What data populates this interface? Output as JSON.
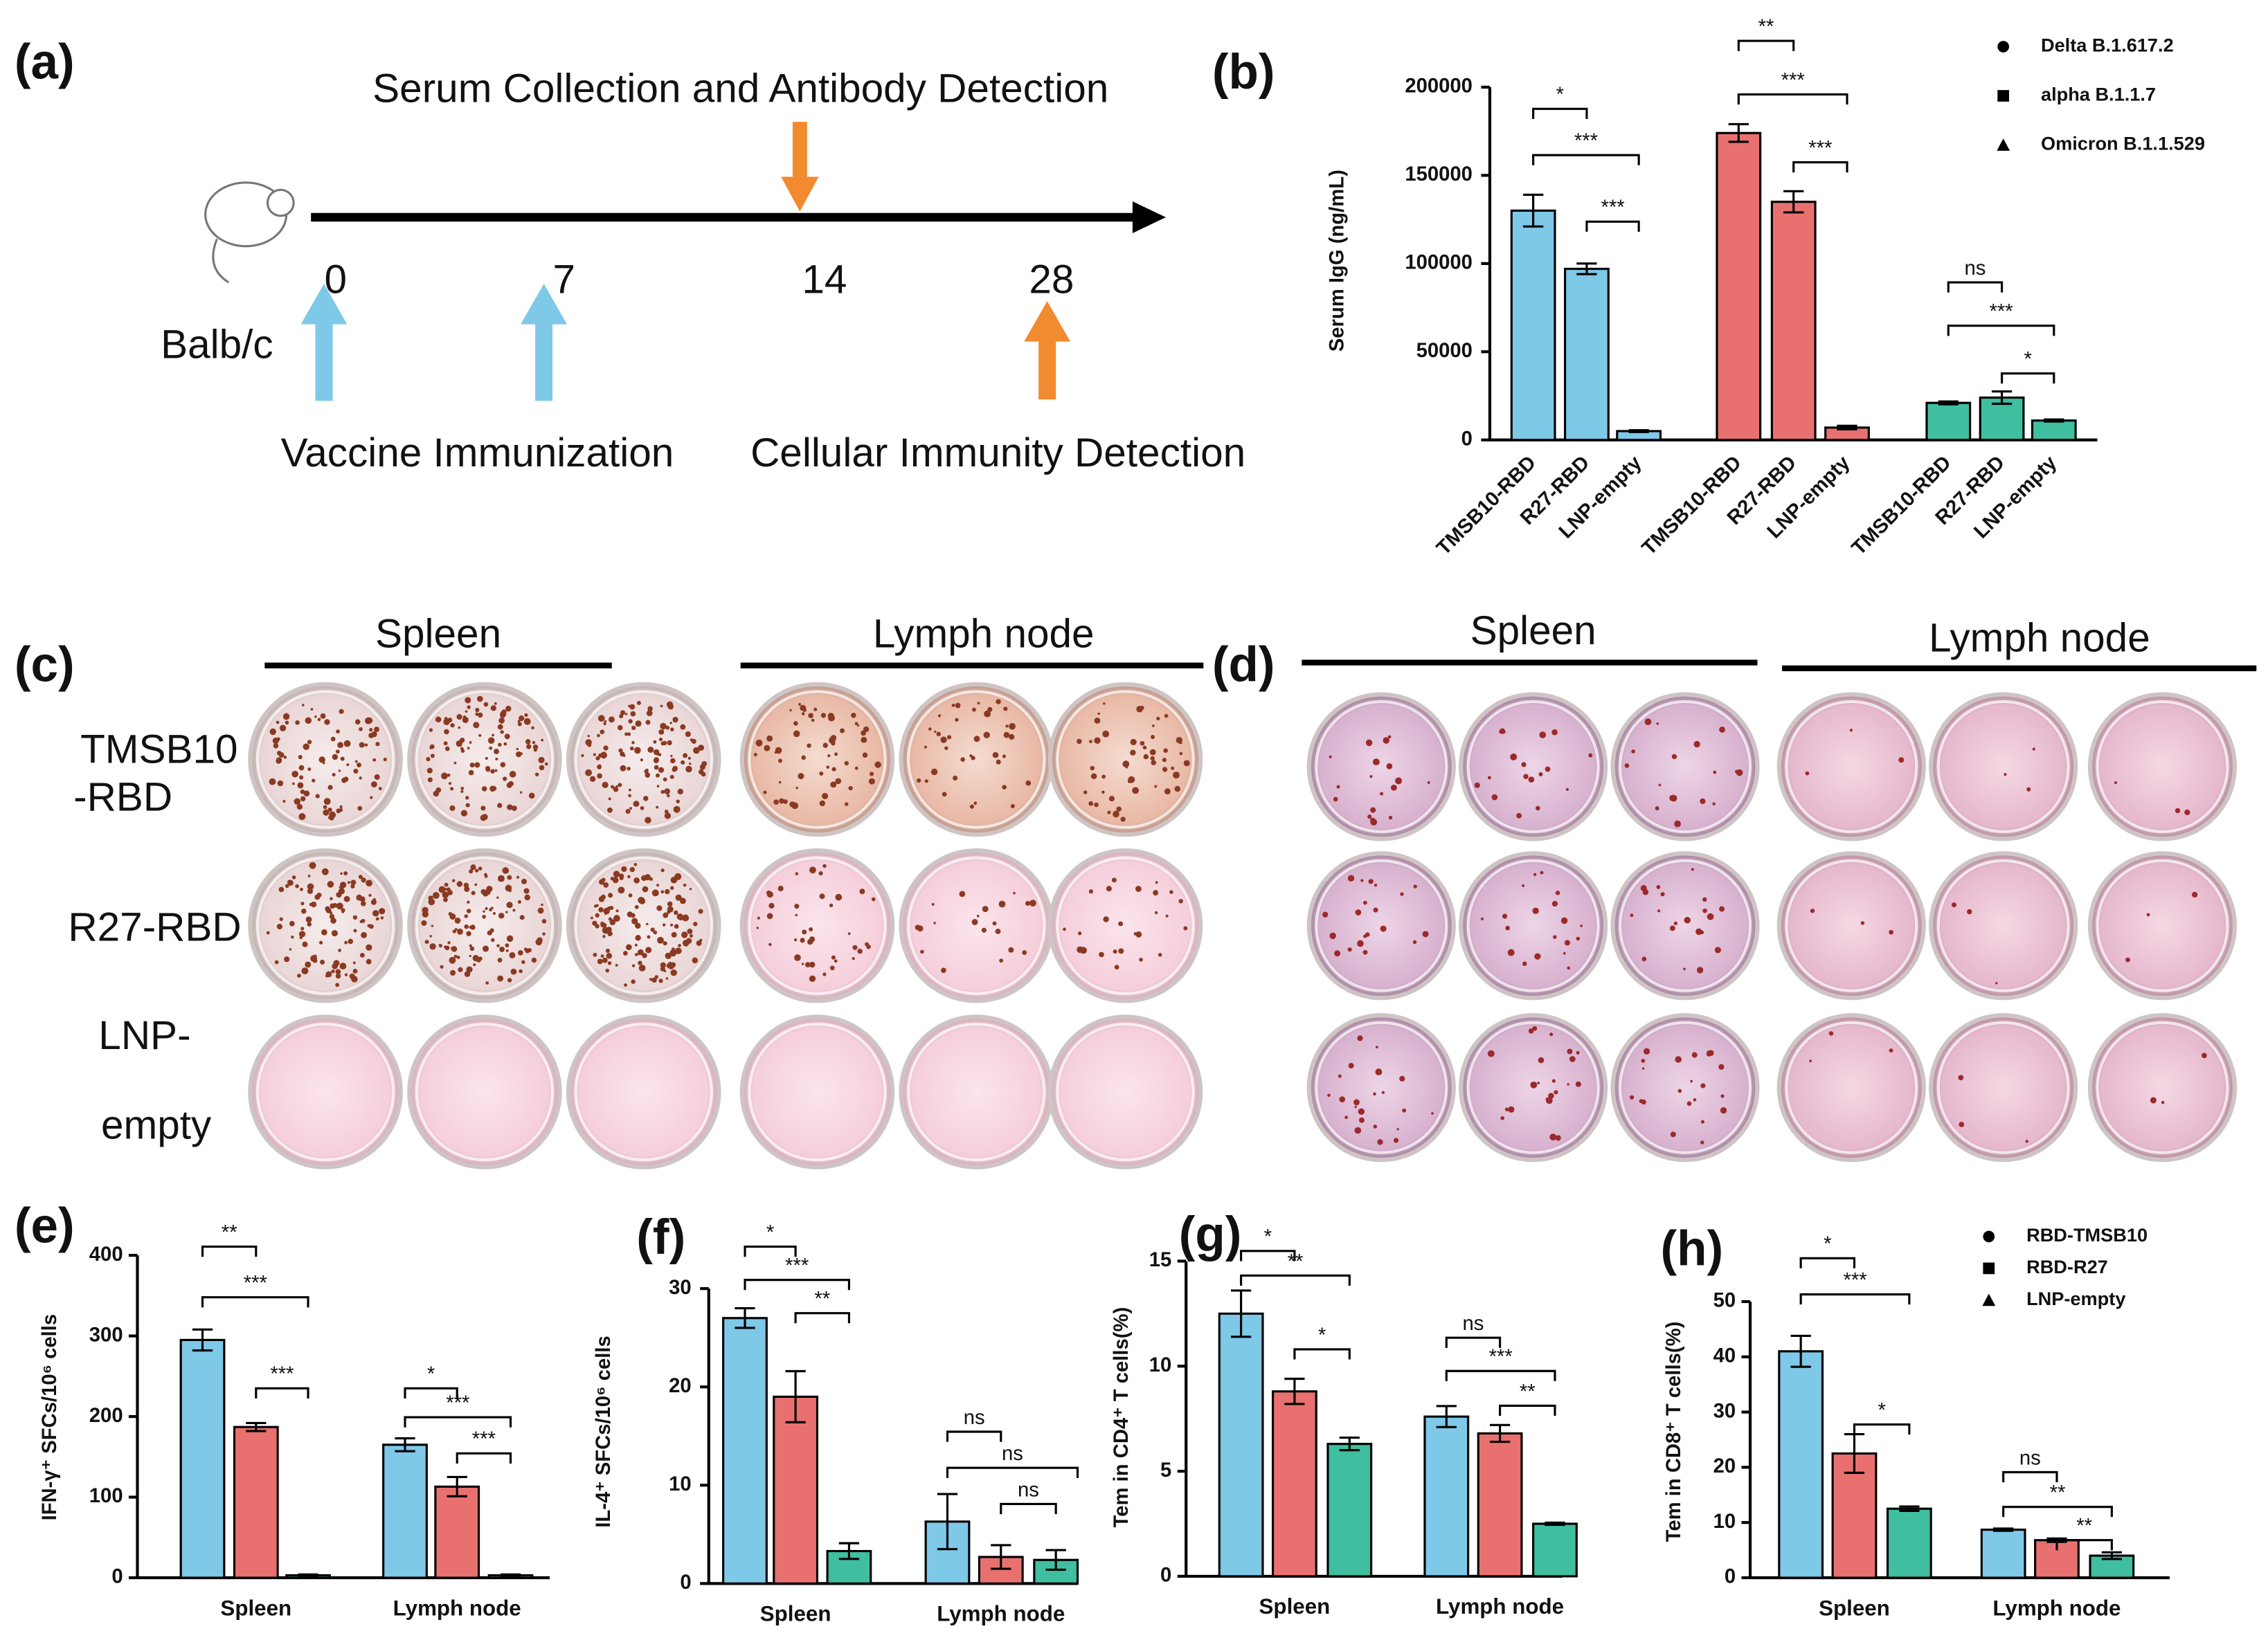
{
  "panel_labels": [
    "(a)",
    "(b)",
    "(c)",
    "(d)",
    "(e)",
    "(f)",
    "(g)",
    "(h)"
  ],
  "timeline": {
    "top_label": "Serum Collection and Antibody Detection",
    "strain": "Balb/c",
    "days": [
      "0",
      "7",
      "14",
      "28"
    ],
    "bottom_left": "Vaccine Immunization",
    "bottom_right": "Cellular Immunity Detection"
  },
  "plates": [
    {
      "columns": [
        "Spleen",
        "Lymph node"
      ],
      "rows": [
        [
          "TMSB10",
          "-RBD"
        ],
        [
          "R27-RBD"
        ],
        [
          "LNP-",
          "empty"
        ]
      ]
    },
    {
      "columns": [
        "Spleen",
        "Lymph node"
      ]
    }
  ],
  "chart_data": [
    {
      "type": "bar",
      "group_by": "series",
      "ylabel": "Serum IgG (ng/mL)",
      "categories": [
        "TMSB10-RBD",
        "R27-RBD",
        "LNP-empty"
      ],
      "series": [
        {
          "name": "Delta B.1.617.2",
          "marker": "circle",
          "color": "#7ec8e8",
          "values": [
            130000,
            97000,
            5000
          ],
          "errors": [
            9000,
            3000,
            500
          ]
        },
        {
          "name": "alpha B.1.1.7",
          "marker": "square",
          "color": "#e8716f",
          "values": [
            174000,
            135000,
            7000
          ],
          "errors": [
            5000,
            6000,
            1000
          ]
        },
        {
          "name": "Omicron B.1.1.529",
          "marker": "triangle",
          "color": "#3fbf9f",
          "values": [
            21000,
            24000,
            11000
          ],
          "errors": [
            800,
            3500,
            600
          ]
        }
      ],
      "ylim": [
        0,
        200000
      ],
      "yticks": [
        0,
        50000,
        100000,
        150000,
        200000
      ],
      "significance": [
        "*",
        "***",
        "***",
        "**",
        "***",
        "***",
        "ns",
        "***",
        "*"
      ]
    },
    {
      "type": "bar",
      "group_by": "category",
      "ylabel": "IFN-γ⁺ SFCs/10⁶ cells",
      "categories": [
        "Spleen",
        "Lymph node"
      ],
      "series": [
        {
          "color": "#7ec8e8",
          "values": [
            295,
            165
          ],
          "errors": [
            13,
            8
          ]
        },
        {
          "color": "#e8716f",
          "values": [
            187,
            113
          ],
          "errors": [
            5,
            12
          ]
        },
        {
          "color": "#3fbf9f",
          "values": [
            3,
            3
          ],
          "errors": [
            1,
            1
          ]
        }
      ],
      "ylim": [
        0,
        400
      ],
      "yticks": [
        0,
        100,
        200,
        300,
        400
      ],
      "significance": [
        "**",
        "***",
        "***",
        "*",
        "***",
        "***"
      ]
    },
    {
      "type": "bar",
      "group_by": "category",
      "ylabel": "IL-4⁺ SFCs/10⁶ cells",
      "categories": [
        "Spleen",
        "Lymph node"
      ],
      "series": [
        {
          "color": "#7ec8e8",
          "values": [
            27,
            6.3
          ],
          "errors": [
            1,
            2.8
          ]
        },
        {
          "color": "#e8716f",
          "values": [
            19,
            2.7
          ],
          "errors": [
            2.6,
            1.2
          ]
        },
        {
          "color": "#3fbf9f",
          "values": [
            3.3,
            2.4
          ],
          "errors": [
            0.8,
            1
          ]
        }
      ],
      "ylim": [
        0,
        30
      ],
      "yticks": [
        0,
        10,
        20,
        30
      ],
      "significance": [
        "*",
        "***",
        "**",
        "ns",
        "ns",
        "ns"
      ]
    },
    {
      "type": "bar",
      "group_by": "category",
      "ylabel": "Tem in CD4⁺ T cells(%)",
      "categories": [
        "Spleen",
        "Lymph node"
      ],
      "series": [
        {
          "color": "#7ec8e8",
          "values": [
            12.5,
            7.6
          ],
          "errors": [
            1.1,
            0.5
          ]
        },
        {
          "color": "#e8716f",
          "values": [
            8.8,
            6.8
          ],
          "errors": [
            0.6,
            0.4
          ]
        },
        {
          "color": "#3fbf9f",
          "values": [
            6.3,
            2.5
          ],
          "errors": [
            0.3,
            0.05
          ]
        }
      ],
      "ylim": [
        0,
        15
      ],
      "yticks": [
        0,
        5,
        10,
        15
      ],
      "significance": [
        "*",
        "**",
        "*",
        "ns",
        "***",
        "**"
      ]
    },
    {
      "type": "bar",
      "group_by": "category",
      "ylabel": "Tem in CD8⁺ T cells(%)",
      "categories": [
        "Spleen",
        "Lymph node"
      ],
      "series": [
        {
          "name": "RBD-TMSB10",
          "marker": "circle",
          "color": "#7ec8e8",
          "values": [
            41,
            8.7
          ],
          "errors": [
            2.8,
            0.2
          ]
        },
        {
          "name": "RBD-R27",
          "marker": "square",
          "color": "#e8716f",
          "values": [
            22.5,
            6.8
          ],
          "errors": [
            3.5,
            0.3
          ]
        },
        {
          "name": "LNP-empty",
          "marker": "triangle",
          "color": "#3fbf9f",
          "values": [
            12.5,
            4
          ],
          "errors": [
            0.4,
            0.6
          ]
        }
      ],
      "ylim": [
        0,
        50
      ],
      "yticks": [
        0,
        10,
        20,
        30,
        40,
        50
      ],
      "significance": [
        "*",
        "***",
        "*",
        "ns",
        "**",
        "**"
      ]
    }
  ]
}
